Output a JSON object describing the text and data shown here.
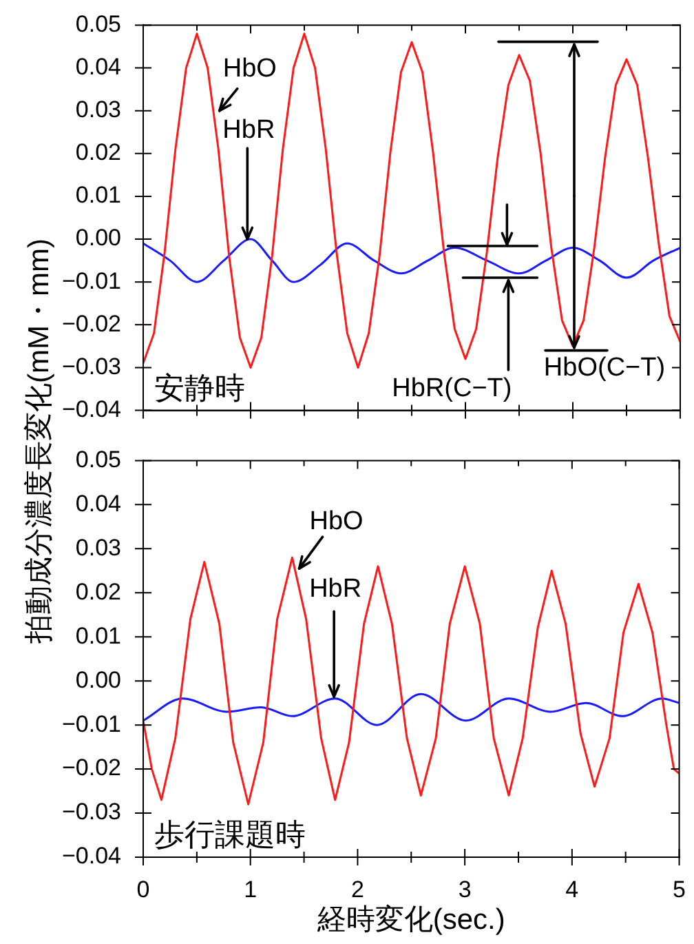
{
  "chart_data": [
    {
      "type": "line",
      "ylabel": "拍動成分濃度長変化(mM・mm)",
      "marker": "none",
      "line_style": "solid",
      "tick_labels": "y",
      "xlim": [
        0,
        5
      ],
      "xticks": [
        0,
        {
          "value": 0.5,
          "label": null
        },
        1,
        {
          "value": 1.5,
          "label": null
        },
        2,
        {
          "value": 2.5,
          "label": null
        },
        3,
        {
          "value": 3.5,
          "label": null
        },
        4,
        {
          "value": 4.5,
          "label": null
        },
        5
      ],
      "ylim": [
        -0.04,
        0.05
      ],
      "yticks": [
        {
          "value": -0.04,
          "label": "−0.04"
        },
        {
          "value": -0.03,
          "label": "−0.03"
        },
        {
          "value": -0.02,
          "label": "−0.02"
        },
        {
          "value": -0.01,
          "label": "−0.01"
        },
        {
          "value": 0,
          "label": "0.00"
        },
        0.01,
        0.02,
        0.03,
        0.04,
        0.05
      ],
      "series": [
        {
          "color": "#ff1a1a",
          "x": [
            0,
            0.1,
            0.2,
            0.3,
            0.4,
            0.5,
            0.6,
            0.7,
            0.8,
            0.9,
            1.0,
            1.1,
            1.2,
            1.3,
            1.4,
            1.5,
            1.6,
            1.7,
            1.8,
            1.9,
            2.0,
            2.1,
            2.2,
            2.3,
            2.4,
            2.5,
            2.6,
            2.7,
            2.8,
            2.9,
            3.0,
            3.1,
            3.2,
            3.3,
            3.4,
            3.5,
            3.6,
            3.7,
            3.8,
            3.9,
            4.0,
            4.1,
            4.2,
            4.3,
            4.4,
            4.5,
            4.6,
            4.7,
            4.8,
            4.9,
            5.0
          ],
          "values": [
            -0.029,
            -0.022,
            -0.003,
            0.021,
            0.04,
            0.048,
            0.04,
            0.021,
            -0.004,
            -0.023,
            -0.03,
            -0.023,
            -0.004,
            0.021,
            0.04,
            0.048,
            0.04,
            0.021,
            -0.003,
            -0.022,
            -0.03,
            -0.022,
            -0.004,
            0.02,
            0.039,
            0.046,
            0.039,
            0.02,
            -0.003,
            -0.021,
            -0.028,
            -0.021,
            -0.003,
            0.019,
            0.036,
            0.043,
            0.037,
            0.02,
            -0.002,
            -0.019,
            -0.025,
            -0.019,
            -0.002,
            0.019,
            0.036,
            0.042,
            0.036,
            0.019,
            -0.001,
            -0.018,
            -0.024
          ]
        },
        {
          "color": "#1a1aff",
          "x": [
            0,
            0.25,
            0.5,
            0.75,
            1.0,
            1.2,
            1.4,
            1.65,
            1.9,
            2.15,
            2.4,
            2.65,
            2.9,
            3.2,
            3.5,
            3.75,
            4.0,
            4.25,
            4.5,
            4.75,
            5.0
          ],
          "values": [
            -0.001,
            -0.005,
            -0.01,
            -0.005,
            0.0,
            -0.005,
            -0.01,
            -0.006,
            -0.001,
            -0.005,
            -0.008,
            -0.005,
            -0.002,
            -0.005,
            -0.008,
            -0.005,
            -0.002,
            -0.005,
            -0.009,
            -0.005,
            -0.002
          ]
        }
      ],
      "annotations": [
        "安静時",
        {
          "text": "HbO",
          "x": 0.71,
          "y": 0.03
        },
        {
          "text": "HbR",
          "x": 0.97,
          "y": 0.0
        },
        {
          "text": "HbR(C−T)",
          "x": 3.4,
          "y": -0.009
        },
        {
          "text": "HbO(C−T)",
          "x": 4.0,
          "y": -0.026
        }
      ]
    },
    {
      "type": "line",
      "xlabel": "経時変化(sec.)",
      "marker": "none",
      "line_style": "solid",
      "xlim": [
        0,
        5
      ],
      "xticks": [
        0,
        {
          "value": 0.5,
          "label": null
        },
        1,
        {
          "value": 1.5,
          "label": null
        },
        2,
        {
          "value": 2.5,
          "label": null
        },
        3,
        {
          "value": 3.5,
          "label": null
        },
        4,
        {
          "value": 4.5,
          "label": null
        },
        5
      ],
      "ylim": [
        -0.04,
        0.05
      ],
      "yticks": [
        {
          "value": -0.04,
          "label": "−0.04"
        },
        {
          "value": -0.03,
          "label": "−0.03"
        },
        {
          "value": -0.02,
          "label": "−0.02"
        },
        {
          "value": -0.01,
          "label": "−0.01"
        },
        {
          "value": 0,
          "label": "0.00"
        },
        0.01,
        0.02,
        0.03,
        0.04,
        0.05
      ],
      "series": [
        {
          "color": "#ff1a1a",
          "x": [
            0,
            0.08,
            0.17,
            0.3,
            0.44,
            0.57,
            0.71,
            0.84,
            0.98,
            1.12,
            1.25,
            1.39,
            1.52,
            1.66,
            1.79,
            1.92,
            2.06,
            2.19,
            2.32,
            2.46,
            2.59,
            2.73,
            2.86,
            3.0,
            3.14,
            3.27,
            3.41,
            3.54,
            3.68,
            3.81,
            3.94,
            4.08,
            4.21,
            4.35,
            4.48,
            4.62,
            4.75,
            4.88,
            4.95,
            5.0
          ],
          "values": [
            -0.009,
            -0.02,
            -0.027,
            -0.013,
            0.014,
            0.027,
            0.013,
            -0.014,
            -0.028,
            -0.014,
            0.014,
            0.028,
            0.014,
            -0.013,
            -0.027,
            -0.014,
            0.013,
            0.026,
            0.013,
            -0.013,
            -0.026,
            -0.013,
            0.013,
            0.026,
            0.013,
            -0.013,
            -0.026,
            -0.013,
            0.012,
            0.025,
            0.013,
            -0.012,
            -0.024,
            -0.013,
            0.011,
            0.022,
            0.011,
            -0.01,
            -0.02,
            -0.021
          ]
        },
        {
          "color": "#1a1aff",
          "x": [
            0,
            0.37,
            0.78,
            1.1,
            1.39,
            1.79,
            2.18,
            2.59,
            3.01,
            3.41,
            3.8,
            4.13,
            4.47,
            4.84,
            5.0
          ],
          "values": [
            -0.009,
            -0.004,
            -0.007,
            -0.006,
            -0.008,
            -0.004,
            -0.01,
            -0.003,
            -0.009,
            -0.004,
            -0.007,
            -0.005,
            -0.008,
            -0.004,
            -0.005
          ]
        }
      ],
      "annotations": [
        "歩行課題時",
        {
          "text": "HbO",
          "x": 1.455,
          "y": 0.0255
        },
        {
          "text": "HbR",
          "x": 1.78,
          "y": -0.0036
        }
      ]
    }
  ]
}
